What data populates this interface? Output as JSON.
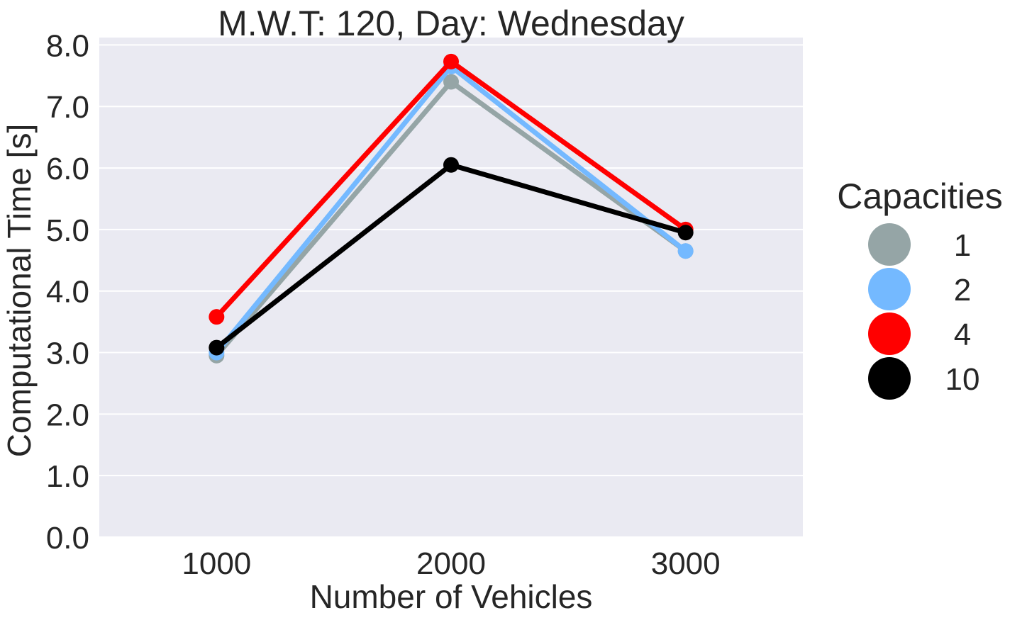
{
  "chart_data": {
    "type": "line",
    "title": "M.W.T: 120, Day: Wednesday",
    "xlabel": "Number of Vehicles",
    "ylabel": "Computational Time [s]",
    "categories": [
      "1000",
      "2000",
      "3000"
    ],
    "ylim": [
      0,
      8.0
    ],
    "yticks": [
      "0.0",
      "1.0",
      "2.0",
      "3.0",
      "4.0",
      "5.0",
      "6.0",
      "7.0",
      "8.0"
    ],
    "grid": true,
    "background_color": "#EAEAF2",
    "legend": {
      "title": "Capacities",
      "placement": "right"
    },
    "series": [
      {
        "name": "1",
        "color": "#95A5A6",
        "values": [
          2.95,
          7.4,
          4.65
        ]
      },
      {
        "name": "2",
        "color": "#74B9FF",
        "values": [
          3.0,
          7.65,
          4.65
        ]
      },
      {
        "name": "4",
        "color": "#FF0000",
        "values": [
          3.58,
          7.73,
          5.0
        ]
      },
      {
        "name": "10",
        "color": "#000000",
        "values": [
          3.08,
          6.05,
          4.95
        ]
      }
    ]
  }
}
